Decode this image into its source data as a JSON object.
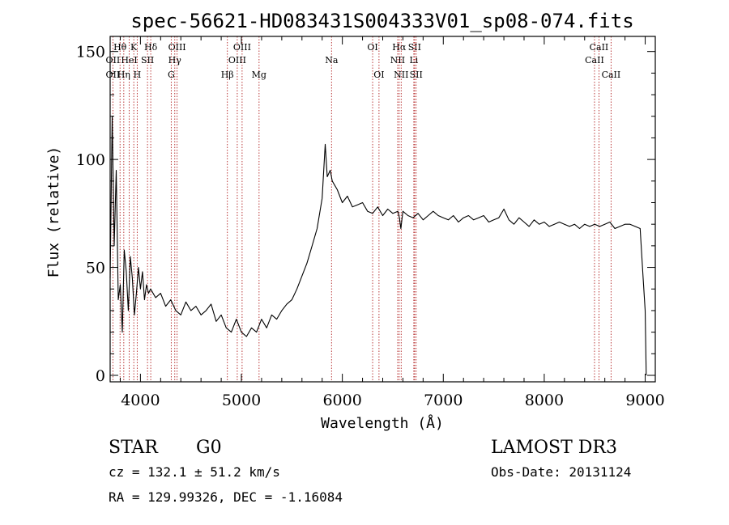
{
  "chart_data": {
    "type": "line",
    "title": "spec-56621-HD083431S004333V01_sp08-074.fits",
    "xlabel": "Wavelength (Å)",
    "ylabel": "Flux (relative)",
    "xlim": [
      3700,
      9100
    ],
    "ylim": [
      -3,
      157
    ],
    "x_ticks": [
      4000,
      5000,
      6000,
      7000,
      8000,
      9000
    ],
    "y_ticks": [
      0,
      50,
      100,
      150
    ],
    "series": [
      {
        "x": [
          3700,
          3720,
          3740,
          3760,
          3780,
          3800,
          3820,
          3840,
          3860,
          3880,
          3900,
          3920,
          3940,
          3960,
          3980,
          4000,
          4020,
          4040,
          4060,
          4080,
          4100,
          4150,
          4200,
          4250,
          4300,
          4350,
          4400,
          4450,
          4500,
          4550,
          4600,
          4650,
          4700,
          4750,
          4800,
          4850,
          4900,
          4950,
          5000,
          5050,
          5100,
          5150,
          5200,
          5250,
          5300,
          5350,
          5400,
          5450,
          5500,
          5550,
          5600,
          5650,
          5700,
          5750,
          5800,
          5830,
          5850,
          5880,
          5900,
          5950,
          6000,
          6050,
          6100,
          6150,
          6200,
          6250,
          6300,
          6350,
          6400,
          6450,
          6500,
          6550,
          6565,
          6580,
          6600,
          6650,
          6700,
          6750,
          6800,
          6850,
          6900,
          6950,
          7000,
          7050,
          7100,
          7150,
          7200,
          7250,
          7300,
          7350,
          7400,
          7450,
          7500,
          7550,
          7600,
          7650,
          7700,
          7750,
          7800,
          7850,
          7900,
          7950,
          8000,
          8050,
          8100,
          8150,
          8200,
          8250,
          8300,
          8350,
          8400,
          8450,
          8500,
          8550,
          8600,
          8650,
          8700,
          8750,
          8800,
          8850,
          8900,
          8950,
          8980,
          9000,
          9010
        ],
        "y": [
          45,
          120,
          60,
          95,
          35,
          42,
          20,
          58,
          48,
          30,
          55,
          45,
          28,
          38,
          50,
          40,
          48,
          35,
          42,
          38,
          40,
          36,
          38,
          32,
          35,
          30,
          28,
          34,
          30,
          32,
          28,
          30,
          33,
          25,
          28,
          22,
          20,
          26,
          20,
          18,
          22,
          20,
          26,
          22,
          28,
          26,
          30,
          33,
          35,
          40,
          46,
          52,
          60,
          68,
          82,
          107,
          92,
          95,
          90,
          86,
          80,
          83,
          78,
          79,
          80,
          76,
          75,
          78,
          74,
          77,
          75,
          76,
          73,
          68,
          76,
          74,
          73,
          75,
          72,
          74,
          76,
          74,
          73,
          72,
          74,
          71,
          73,
          74,
          72,
          73,
          74,
          71,
          72,
          73,
          77,
          72,
          70,
          73,
          71,
          69,
          72,
          70,
          71,
          69,
          70,
          71,
          70,
          69,
          70,
          68,
          70,
          69,
          70,
          69,
          70,
          71,
          68,
          69,
          70,
          70,
          69,
          68,
          45,
          30,
          0
        ]
      }
    ],
    "spectral_lines": [
      {
        "label": "Hθ",
        "x": 3798,
        "row": 1
      },
      {
        "label": "OII",
        "x": 3727,
        "row": 2
      },
      {
        "label": "HeI",
        "x": 3889,
        "row": 2
      },
      {
        "label": "OII",
        "x": 3727,
        "row": 3
      },
      {
        "label": "Hη",
        "x": 3835,
        "row": 3
      },
      {
        "label": "K",
        "x": 3934,
        "row": 1
      },
      {
        "label": "SII",
        "x": 4070,
        "row": 2
      },
      {
        "label": "H",
        "x": 3968,
        "row": 3
      },
      {
        "label": "Hδ",
        "x": 4102,
        "row": 1
      },
      {
        "label": "OIII",
        "x": 4363,
        "row": 1
      },
      {
        "label": "Hγ",
        "x": 4340,
        "row": 2
      },
      {
        "label": "G",
        "x": 4305,
        "row": 3
      },
      {
        "label": "Hβ",
        "x": 4861,
        "row": 3
      },
      {
        "label": "OIII",
        "x": 5007,
        "row": 1
      },
      {
        "label": "OIII",
        "x": 4959,
        "row": 2
      },
      {
        "label": "Mg",
        "x": 5175,
        "row": 3
      },
      {
        "label": "Na",
        "x": 5893,
        "row": 2
      },
      {
        "label": "OI",
        "x": 6300,
        "row": 1
      },
      {
        "label": "OI",
        "x": 6363,
        "row": 3
      },
      {
        "label": "Hα",
        "x": 6563,
        "row": 1
      },
      {
        "label": "SII",
        "x": 6716,
        "row": 1
      },
      {
        "label": "NII",
        "x": 6548,
        "row": 2
      },
      {
        "label": "Li",
        "x": 6708,
        "row": 2
      },
      {
        "label": "NII",
        "x": 6583,
        "row": 3
      },
      {
        "label": "SII",
        "x": 6731,
        "row": 3
      },
      {
        "label": "CaII",
        "x": 8542,
        "row": 1
      },
      {
        "label": "CaII",
        "x": 8498,
        "row": 2
      },
      {
        "label": "CaII",
        "x": 8662,
        "row": 3
      }
    ]
  },
  "info": {
    "object_class": "STAR",
    "subclass": "G0",
    "survey": "LAMOST DR3",
    "cz": "cz = 132.1 ± 51.2 km/s",
    "obs_date": "Obs-Date: 20131124",
    "coords": "RA = 129.99326, DEC =  -1.16084"
  }
}
